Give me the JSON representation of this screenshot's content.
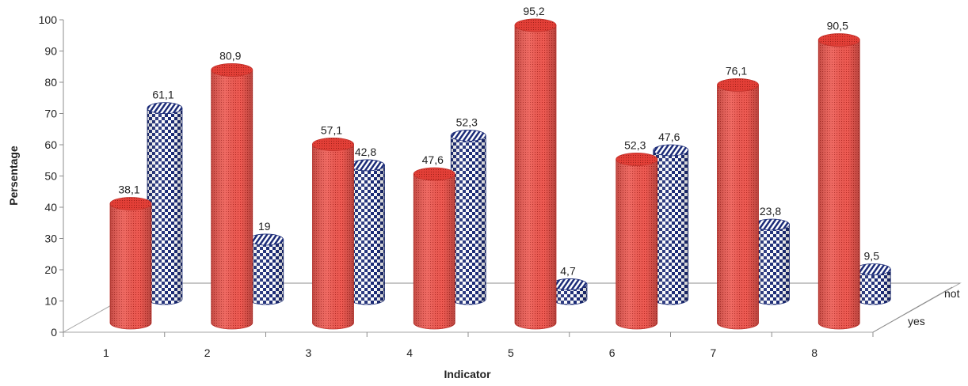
{
  "chart_data": {
    "type": "bar",
    "style": "3d-cylinder",
    "categories": [
      "1",
      "2",
      "3",
      "4",
      "5",
      "6",
      "7",
      "8"
    ],
    "series": [
      {
        "name": "yes",
        "values": [
          38.1,
          80.9,
          57.1,
          47.6,
          95.2,
          52.3,
          76.1,
          90.5
        ],
        "labels": [
          "38,1",
          "80,9",
          "57,1",
          "47,6",
          "95,2",
          "52,3",
          "76,1",
          "90,5"
        ],
        "color": "#e8453c",
        "pattern": "dots"
      },
      {
        "name": "not",
        "values": [
          61.1,
          19,
          42.8,
          52.3,
          4.7,
          47.6,
          23.8,
          9.5
        ],
        "labels": [
          "61,1",
          "19",
          "42,8",
          "52,3",
          "4,7",
          "47,6",
          "23,8",
          "9,5"
        ],
        "color": "#1f2f7a",
        "pattern": "checker"
      }
    ],
    "xlabel": "Indicator",
    "ylabel": "Persentage",
    "ylim": [
      0,
      100
    ],
    "yticks": [
      "0",
      "10",
      "20",
      "30",
      "40",
      "50",
      "60",
      "70",
      "80",
      "90",
      "100"
    ],
    "depth_labels": [
      "yes",
      "not"
    ],
    "grid": false
  }
}
